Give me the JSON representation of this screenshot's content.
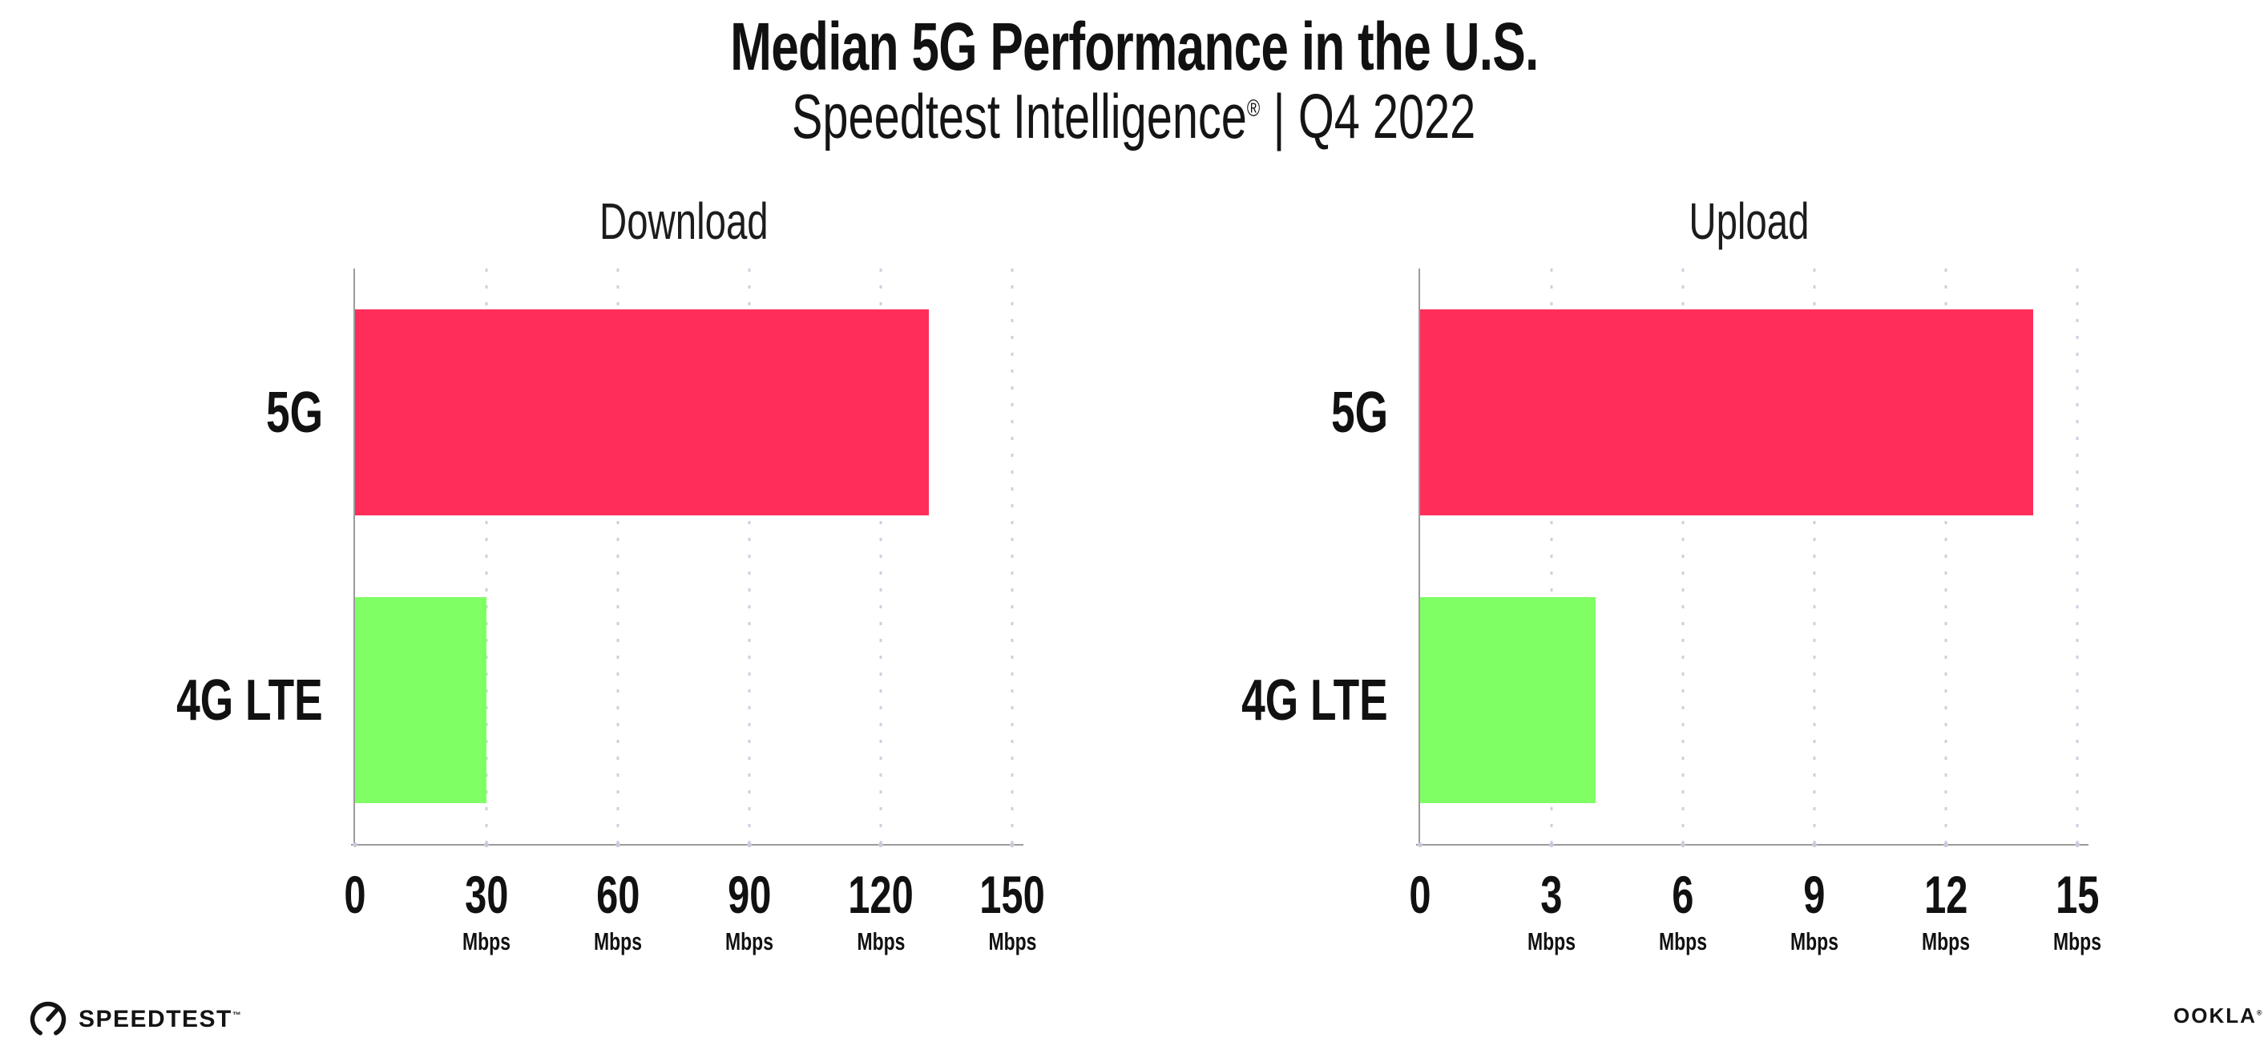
{
  "page": {
    "background": "#ffffff"
  },
  "header": {
    "title": "Median 5G Performance in the U.S.",
    "subtitle": {
      "brand": "Speedtest Intelligence",
      "reg_mark": "®",
      "separator": "|",
      "period": "Q4 2022"
    }
  },
  "chart_data": [
    {
      "type": "bar",
      "orientation": "horizontal",
      "title": "Download",
      "categories": [
        "5G",
        "4G LTE"
      ],
      "values": [
        131,
        30
      ],
      "unit": "Mbps",
      "xlim": [
        0,
        150
      ],
      "xticks": [
        0,
        30,
        60,
        90,
        120,
        150
      ],
      "bar_colors": [
        "#ff2d5a",
        "#80ff64"
      ],
      "grid": "dotted vertical gridlines at each tick",
      "legend": "none"
    },
    {
      "type": "bar",
      "orientation": "horizontal",
      "title": "Upload",
      "categories": [
        "5G",
        "4G LTE"
      ],
      "values": [
        14,
        4
      ],
      "unit": "Mbps",
      "xlim": [
        0,
        15
      ],
      "xticks": [
        0,
        3,
        6,
        9,
        12,
        15
      ],
      "bar_colors": [
        "#ff2d5a",
        "#80ff64"
      ],
      "grid": "dotted vertical gridlines at each tick",
      "legend": "none"
    }
  ],
  "footer": {
    "speedtest_wordmark": "SPEEDTEST",
    "speedtest_trademark": "™",
    "ookla_wordmark": "OOKLA",
    "ookla_trademark": "®"
  },
  "colors": {
    "bar_5g": "#ff2d5a",
    "bar_4g_lte": "#80ff64",
    "axis": "#9b9b9b",
    "gridline": "#c7c7db",
    "text": "#111111",
    "logo": "#141414"
  }
}
